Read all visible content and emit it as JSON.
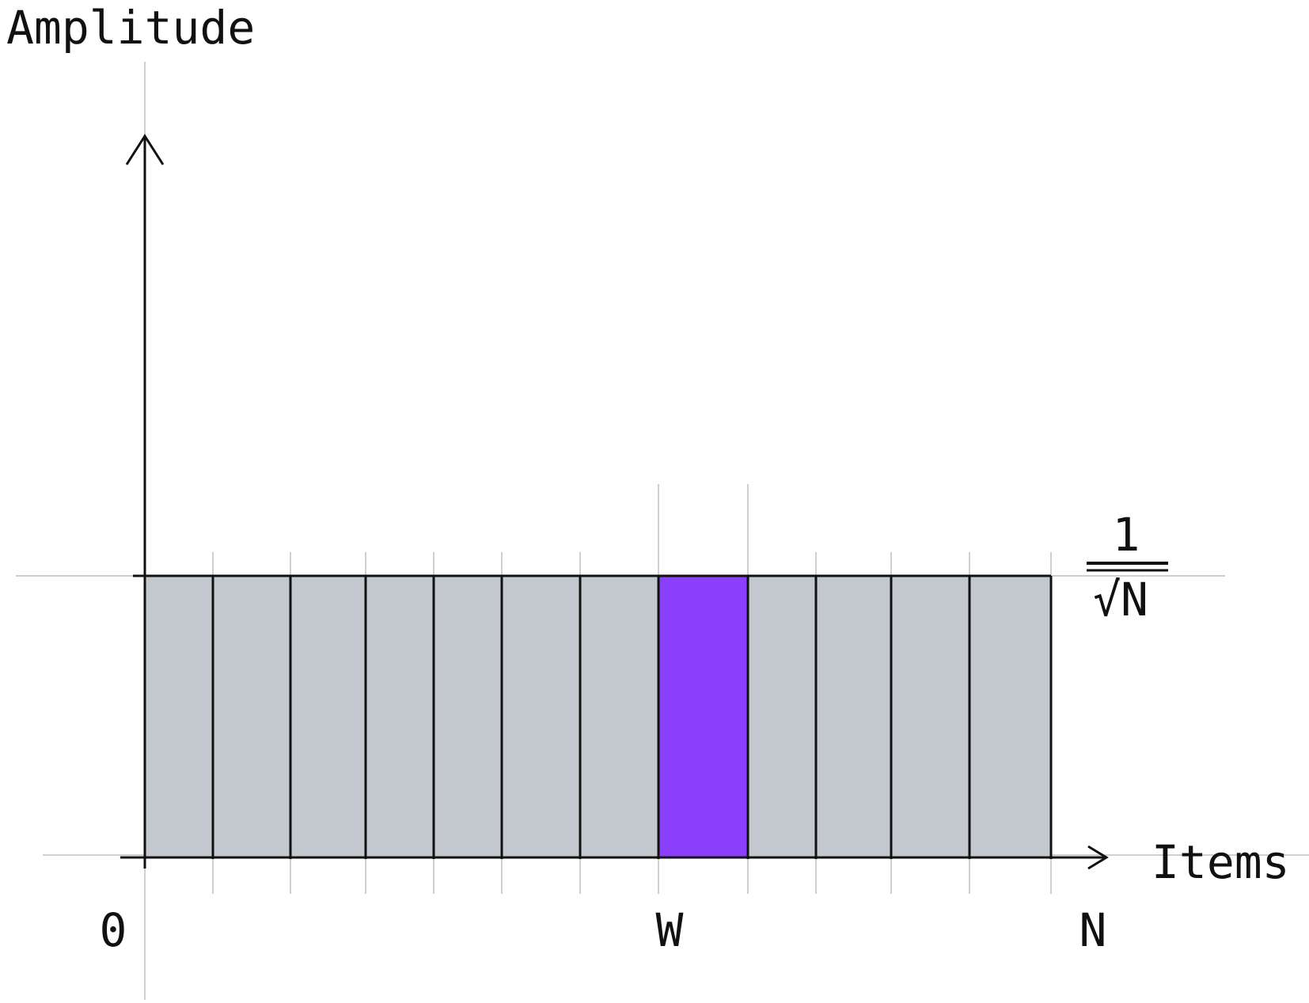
{
  "chart_data": {
    "type": "bar",
    "ylabel": "Amplitude",
    "xlabel": "Items",
    "x_tick_labels": {
      "start": "0",
      "marked": "W",
      "end": "N"
    },
    "value_label": {
      "numerator": "1",
      "denominator": "√N"
    },
    "bar_count": 12,
    "values": [
      1,
      1,
      1,
      1,
      1,
      1,
      1,
      1,
      1,
      1,
      1,
      1
    ],
    "highlight_index": 7,
    "ylim": [
      0,
      2.5
    ],
    "colors": {
      "bar_fill": "#c2c8cd",
      "highlight_fill": "#8a3ffc",
      "stroke": "#111111",
      "guide": "#cfcfcf"
    }
  }
}
